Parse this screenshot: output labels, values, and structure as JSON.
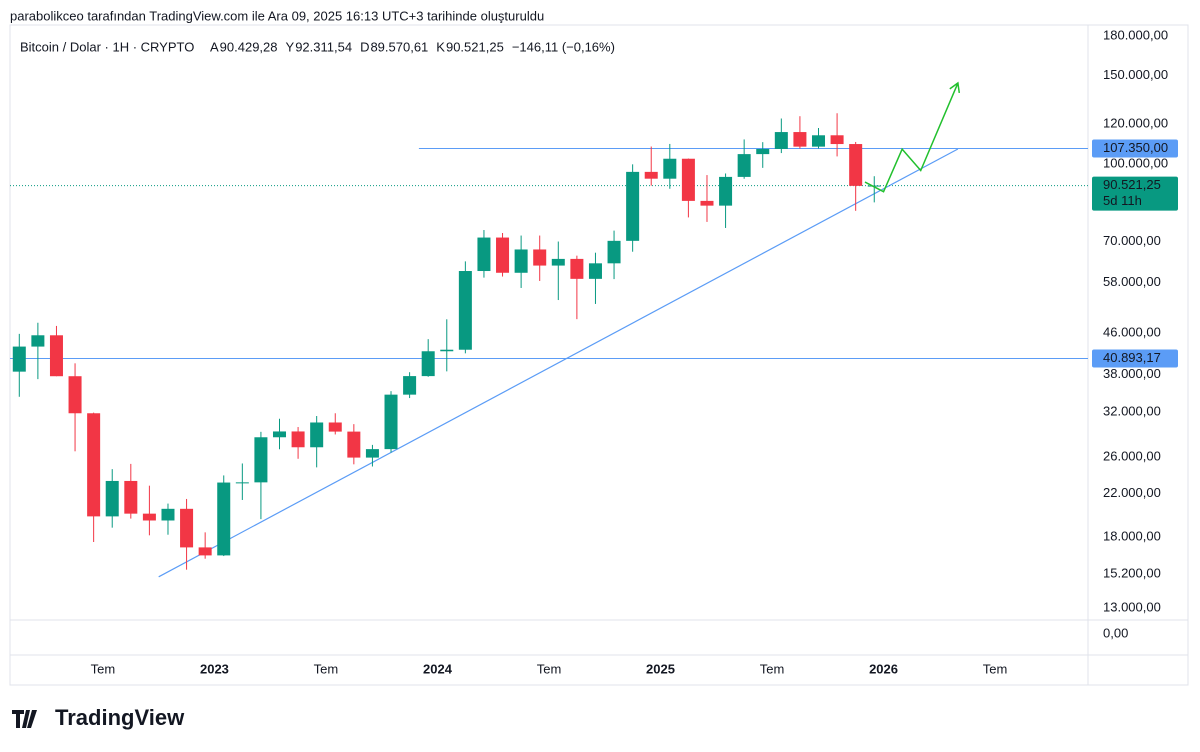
{
  "header": {
    "credit": "parabolikceo tarafından TradingView.com ile Ara 09, 2025 16:13 UTC+3 tarihinde oluşturuldu",
    "symbol": "Bitcoin / Dolar · 1H · CRYPTO",
    "ohlc": [
      {
        "label": "A",
        "value": "90.429,28"
      },
      {
        "label": "Y",
        "value": "92.311,54"
      },
      {
        "label": "D",
        "value": "89.570,61"
      },
      {
        "label": "K",
        "value": "90.521,25"
      }
    ],
    "change": "−146,11 (−0,16%)"
  },
  "footer": {
    "brand": "TradingView"
  },
  "chart_data": {
    "type": "candlestick",
    "log_scale": true,
    "up_color": "#089981",
    "down_color": "#f23645",
    "x": [
      "2022-02",
      "2022-03",
      "2022-04",
      "2022-05",
      "2022-06",
      "2022-07",
      "2022-08",
      "2022-09",
      "2022-10",
      "2022-11",
      "2022-12",
      "2023-01",
      "2023-02",
      "2023-03",
      "2023-04",
      "2023-05",
      "2023-06",
      "2023-07",
      "2023-08",
      "2023-09",
      "2023-10",
      "2023-11",
      "2023-12",
      "2024-01",
      "2024-02",
      "2024-03",
      "2024-04",
      "2024-05",
      "2024-06",
      "2024-07",
      "2024-08",
      "2024-09",
      "2024-10",
      "2024-11",
      "2024-12",
      "2025-01",
      "2025-02",
      "2025-03",
      "2025-04",
      "2025-05",
      "2025-06",
      "2025-07",
      "2025-08",
      "2025-09",
      "2025-10",
      "2025-11",
      "2025-12"
    ],
    "open": [
      38500,
      43200,
      45500,
      37700,
      31800,
      19800,
      23300,
      20050,
      19430,
      20500,
      17170,
      16550,
      23130,
      23150,
      28480,
      29250,
      27200,
      30480,
      29230,
      25940,
      26970,
      34640,
      37720,
      42280,
      42580,
      61130,
      71290,
      60640,
      67490,
      62680,
      64630,
      58970,
      63330,
      70220,
      96400,
      93430,
      102400,
      84370,
      82550,
      94200,
      104600,
      107100,
      115750,
      108250,
      114050,
      109550,
      90400
    ],
    "high": [
      45800,
      48200,
      47500,
      40000,
      31900,
      24600,
      25200,
      22800,
      21000,
      21450,
      18400,
      23900,
      25250,
      29200,
      31000,
      29850,
      31400,
      31800,
      30250,
      27500,
      35200,
      38400,
      44700,
      48970,
      63900,
      73800,
      72800,
      71950,
      71950,
      70000,
      65600,
      66500,
      73600,
      99800,
      108300,
      109600,
      102500,
      95000,
      95700,
      111900,
      110500,
      123200,
      124500,
      117900,
      126200,
      110600,
      94500
    ],
    "low": [
      34300,
      37200,
      37700,
      26700,
      17600,
      18800,
      19600,
      18150,
      18200,
      15500,
      16300,
      16500,
      21350,
      19550,
      26950,
      25800,
      24800,
      28850,
      25150,
      24900,
      26550,
      34100,
      37600,
      38550,
      41880,
      59300,
      59600,
      56550,
      58400,
      53500,
      49000,
      52550,
      58900,
      66800,
      90500,
      89200,
      78200,
      76600,
      74500,
      93400,
      98200,
      105100,
      107300,
      107300,
      103500,
      80600,
      83800
    ],
    "close": [
      43200,
      45500,
      37700,
      31800,
      19800,
      23300,
      20050,
      19430,
      20500,
      17170,
      16550,
      23130,
      23150,
      28480,
      29250,
      27200,
      30480,
      29230,
      25940,
      26970,
      34640,
      37720,
      42280,
      42580,
      61130,
      71290,
      60640,
      67490,
      62680,
      64630,
      58970,
      63330,
      70220,
      96400,
      93430,
      102400,
      84370,
      82550,
      94200,
      104600,
      107100,
      115750,
      108250,
      114050,
      109550,
      90400,
      90521.25
    ],
    "xlim": [
      "2022-02",
      "2026-12"
    ],
    "xticks": [
      {
        "value": "2022-07",
        "label": "Tem"
      },
      {
        "value": "2023-01",
        "label": "2023"
      },
      {
        "value": "2023-07",
        "label": "Tem"
      },
      {
        "value": "2024-01",
        "label": "2024"
      },
      {
        "value": "2024-07",
        "label": "Tem"
      },
      {
        "value": "2025-01",
        "label": "2025"
      },
      {
        "value": "2025-07",
        "label": "Tem"
      },
      {
        "value": "2026-01",
        "label": "2026"
      },
      {
        "value": "2026-07",
        "label": "Tem"
      }
    ],
    "ylim": [
      12300,
      189300
    ],
    "yticks": [
      {
        "value": 180000,
        "label": "180.000,00"
      },
      {
        "value": 150000,
        "label": "150.000,00"
      },
      {
        "value": 120000,
        "label": "120.000,00"
      },
      {
        "value": 100000,
        "label": "100.000,00"
      },
      {
        "value": 70000,
        "label": "70.000,00"
      },
      {
        "value": 58000,
        "label": "58.000,00"
      },
      {
        "value": 46000,
        "label": "46.000,00"
      },
      {
        "value": 38000,
        "label": "38.000,00"
      },
      {
        "value": 32000,
        "label": "32.000,00"
      },
      {
        "value": 26000,
        "label": "26.000,00"
      },
      {
        "value": 22000,
        "label": "22.000,00"
      },
      {
        "value": 18000,
        "label": "18.000,00"
      },
      {
        "value": 15200,
        "label": "15.200,00"
      },
      {
        "value": 13000,
        "label": "13.000,00"
      }
    ],
    "lower_pane": {
      "yticks": [
        {
          "value": 0,
          "label": "0,00"
        }
      ]
    },
    "levels": [
      {
        "value": 107350,
        "label": "107.350,00",
        "start": "2023-12",
        "color": "#5b9cf6"
      },
      {
        "value": 40893.17,
        "label": "40.893,17",
        "start": "2022-02",
        "color": "#5b9cf6"
      }
    ],
    "trendline": {
      "color": "#5b9cf6",
      "points": [
        [
          "2022-10",
          15000
        ],
        [
          "2026-05",
          107100
        ]
      ]
    },
    "projection": {
      "color": "#22c02e",
      "points": [
        [
          "2025-12",
          92000
        ],
        [
          "2026-01",
          88000
        ],
        [
          "2026-02",
          107000
        ],
        [
          "2026-03",
          97000
        ],
        [
          "2026-05",
          145000
        ]
      ]
    },
    "last_price": {
      "value": 90521.25,
      "label": "90.521,25",
      "countdown": "5d 11h",
      "color": "#089981"
    }
  }
}
